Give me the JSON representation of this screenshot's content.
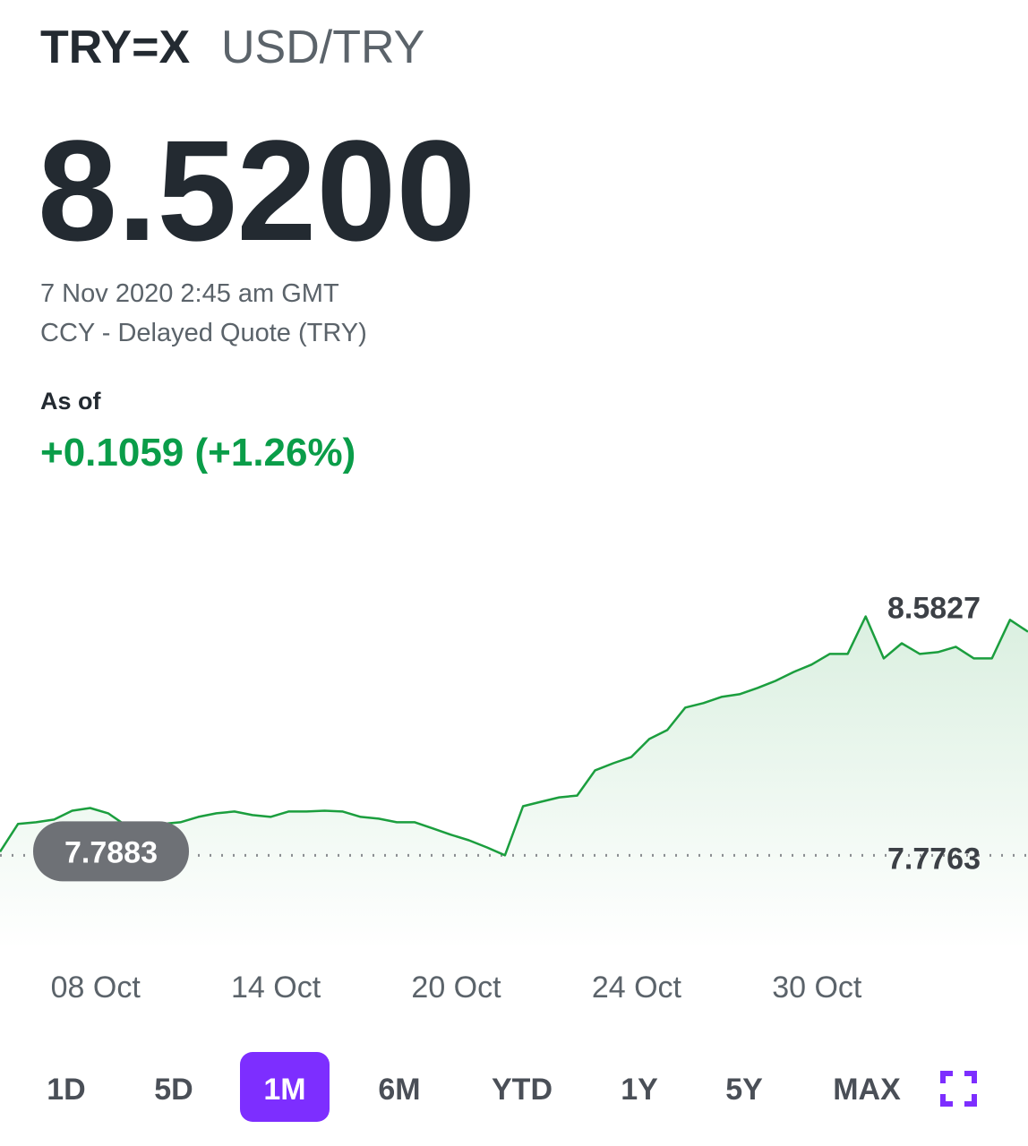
{
  "header": {
    "symbol": "TRY=X",
    "name": "USD/TRY"
  },
  "quote": {
    "price": "8.5200",
    "time": "7 Nov 2020 2:45 am GMT",
    "source": "CCY - Delayed Quote (TRY)",
    "as_of": "As of",
    "change": "+0.1059 (+1.26%)"
  },
  "chart_data": {
    "type": "line",
    "categories": [
      null,
      null,
      null,
      null,
      null,
      "08 Oct",
      null,
      null,
      null,
      null,
      null,
      null,
      null,
      null,
      null,
      "14 Oct",
      null,
      null,
      null,
      null,
      null,
      null,
      null,
      null,
      null,
      "20 Oct",
      null,
      null,
      null,
      null,
      null,
      null,
      null,
      null,
      null,
      "24 Oct",
      null,
      null,
      null,
      null,
      null,
      null,
      null,
      null,
      null,
      "30 Oct",
      null,
      null,
      null,
      null,
      null,
      null,
      null,
      null,
      null,
      null,
      null,
      null
    ],
    "values": [
      7.7883,
      7.882,
      7.888,
      7.897,
      7.927,
      7.936,
      7.918,
      7.876,
      7.882,
      7.882,
      7.888,
      7.906,
      7.918,
      7.924,
      7.912,
      7.906,
      7.924,
      7.924,
      7.927,
      7.924,
      7.906,
      7.9,
      7.888,
      7.888,
      7.867,
      7.846,
      7.827,
      7.803,
      7.7763,
      7.942,
      7.957,
      7.972,
      7.978,
      8.063,
      8.087,
      8.108,
      8.169,
      8.199,
      8.275,
      8.29,
      8.311,
      8.32,
      8.341,
      8.365,
      8.395,
      8.42,
      8.456,
      8.456,
      8.5827,
      8.441,
      8.492,
      8.456,
      8.462,
      8.48,
      8.441,
      8.441,
      8.571,
      8.531
    ],
    "color": "#1b9e3e",
    "ylim": [
      7.46,
      8.85
    ],
    "high": 8.5827,
    "low": 7.7763,
    "previous_close": 7.7883
  },
  "ranges": [
    "1D",
    "5D",
    "1M",
    "6M",
    "YTD",
    "1Y",
    "5Y",
    "MAX"
  ],
  "selected_range": "1M"
}
